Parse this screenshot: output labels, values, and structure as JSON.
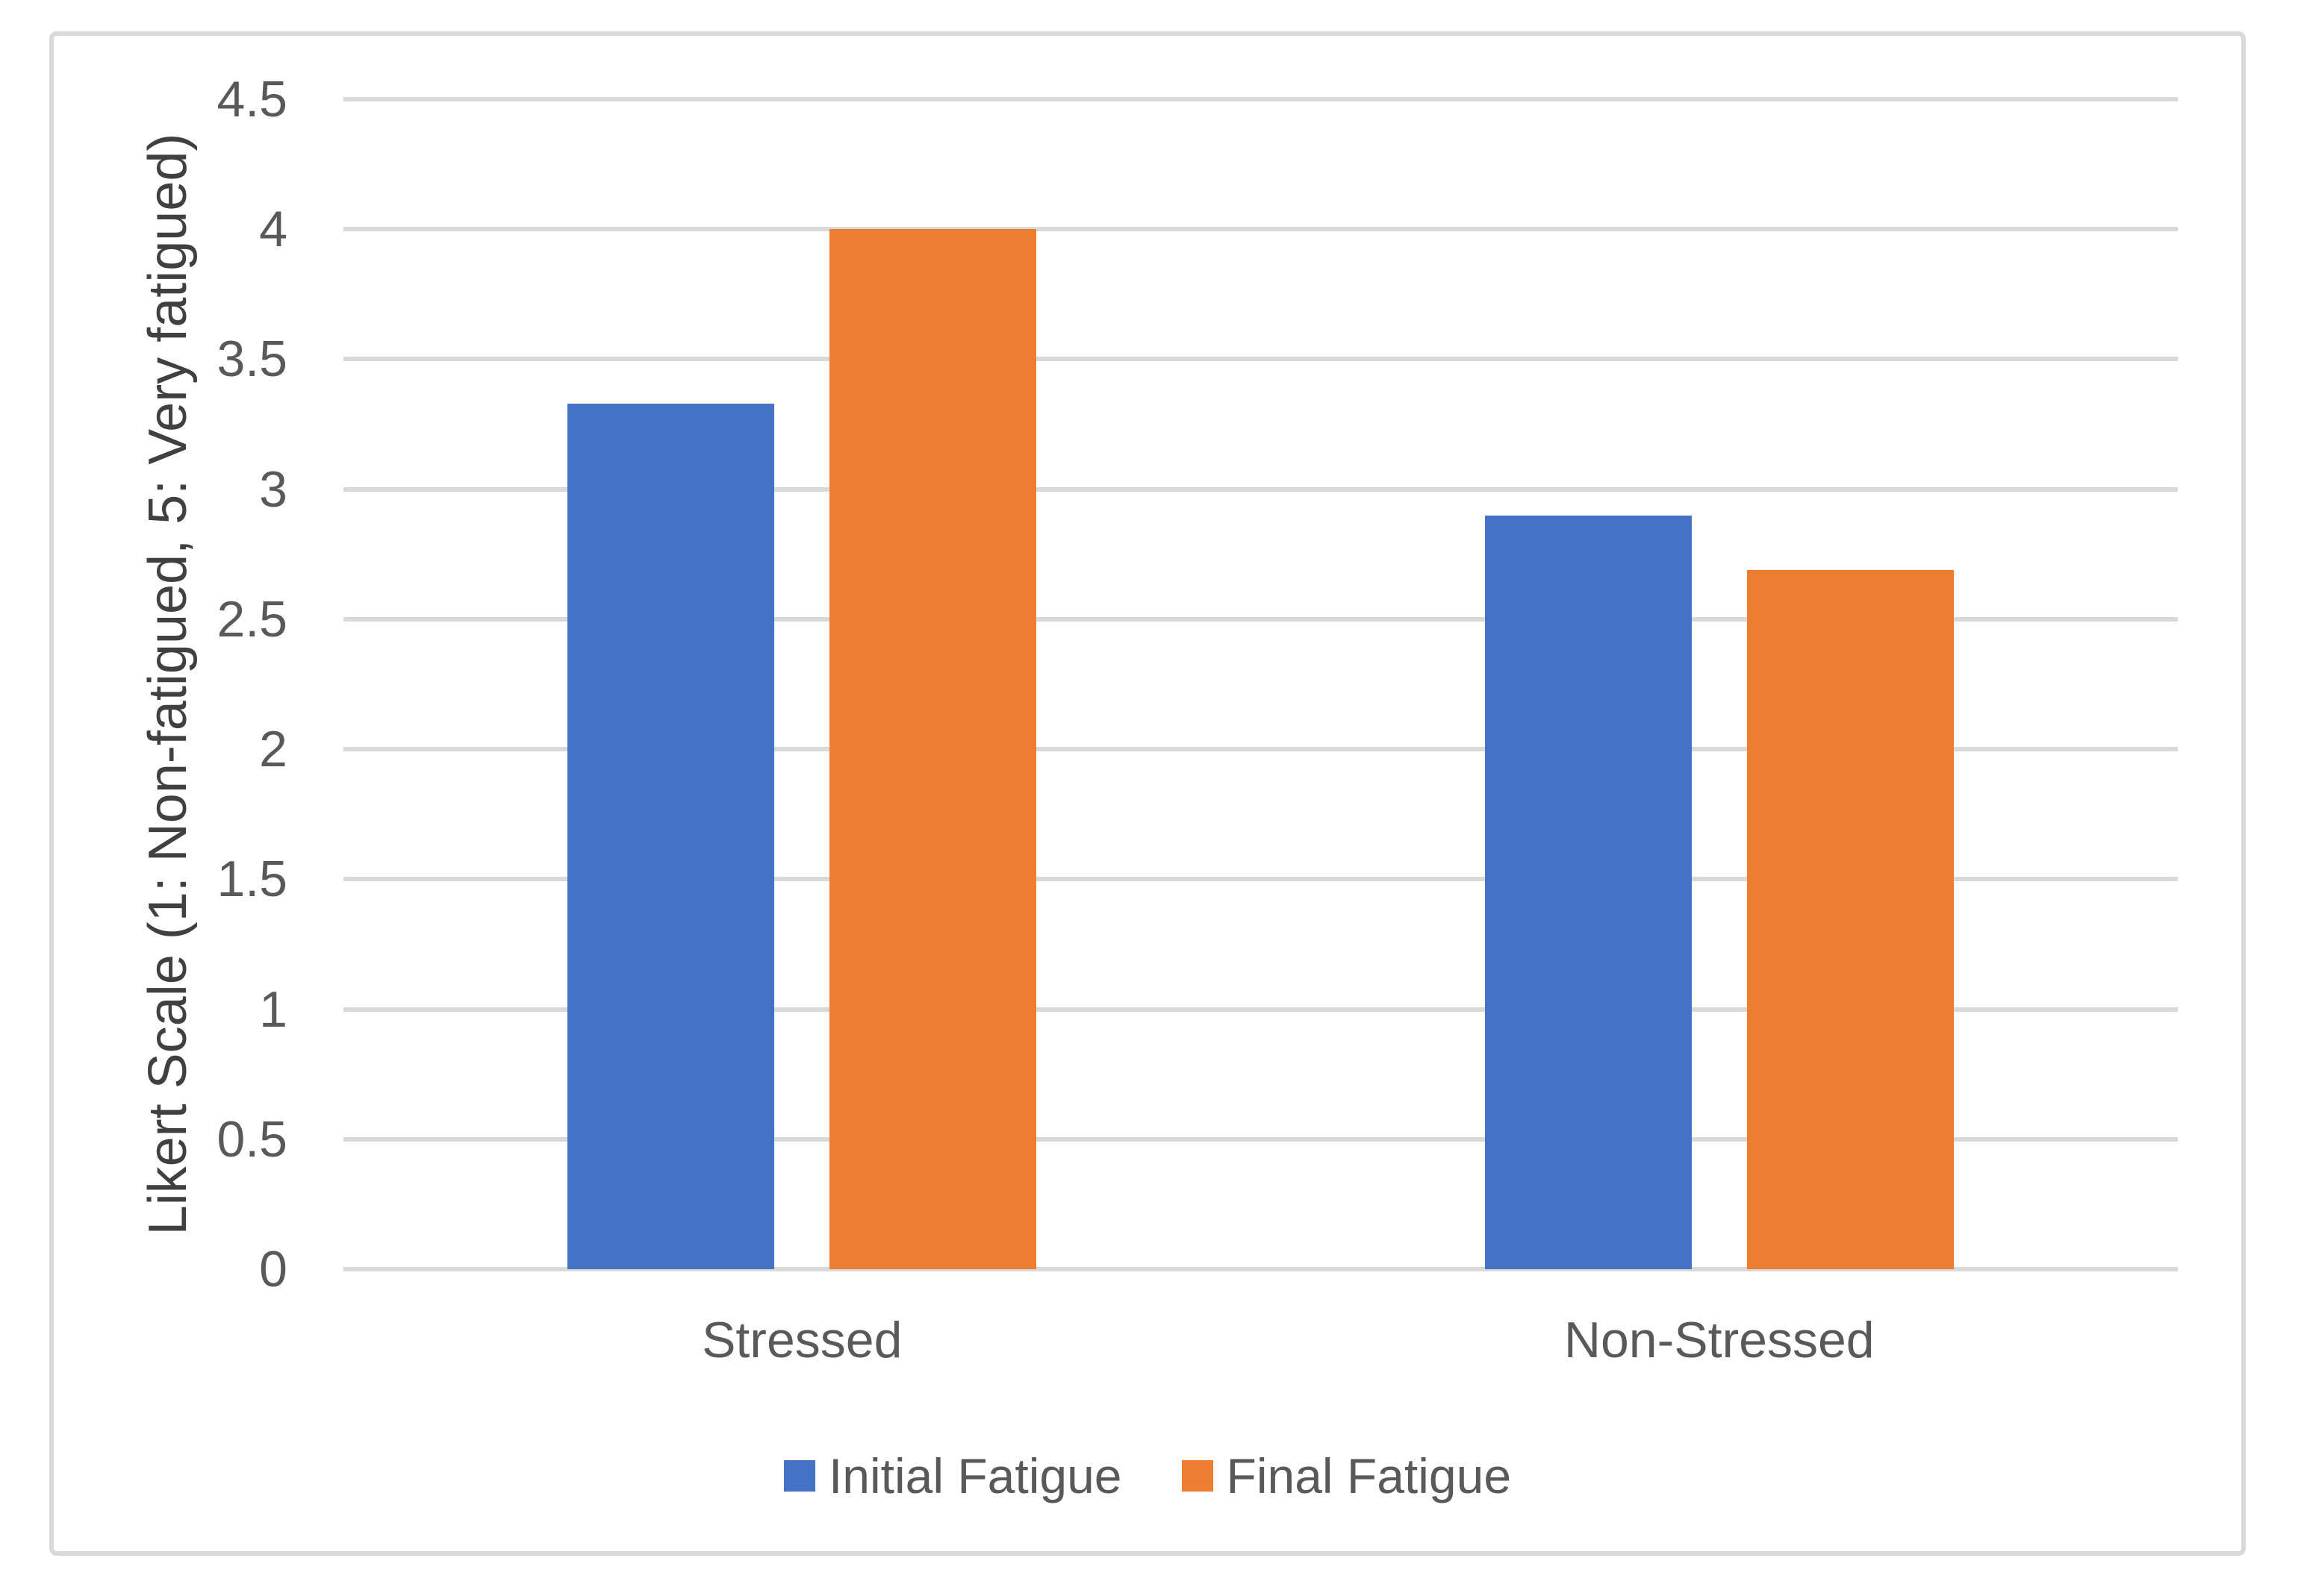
{
  "chart_data": {
    "type": "bar",
    "title": "",
    "categories": [
      "Stressed",
      "Non-Stressed"
    ],
    "series": [
      {
        "name": "Initial Fatigue",
        "color": "#4472C4",
        "values": [
          3.33,
          2.9
        ]
      },
      {
        "name": "Final Fatigue",
        "color": "#ED7D31",
        "values": [
          4.0,
          2.69
        ]
      }
    ],
    "xlabel": "",
    "ylabel": "Likert Scale (1: Non-fatigued, 5: Very fatigued)",
    "ylim": [
      0,
      4.5
    ],
    "ytick_step": 0.5,
    "ytick_labels": [
      "4.5",
      "4",
      "3.5",
      "3",
      "2.5",
      "2",
      "1.5",
      "1",
      "0.5",
      "0"
    ],
    "grid": true,
    "legend_position": "bottom",
    "colors": {
      "gridline": "#D9D9D9",
      "frame_border": "#D9D9D9",
      "tick_label": "#595959",
      "axis_title": "#404040",
      "category_label": "#595959",
      "legend_label": "#595959"
    }
  }
}
